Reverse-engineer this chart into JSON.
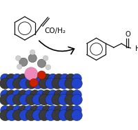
{
  "bg_color": "#ffffff",
  "arrow_color": "#000000",
  "label_co_h2": "CO/H₂",
  "label_fontsize": 7.5,
  "atom_colors": {
    "C": "#3a3a3a",
    "N": "#2244cc",
    "Rh": "#ee88bb",
    "O": "#cc2200",
    "H_light": "#cccccc",
    "C_gray": "#888888"
  }
}
